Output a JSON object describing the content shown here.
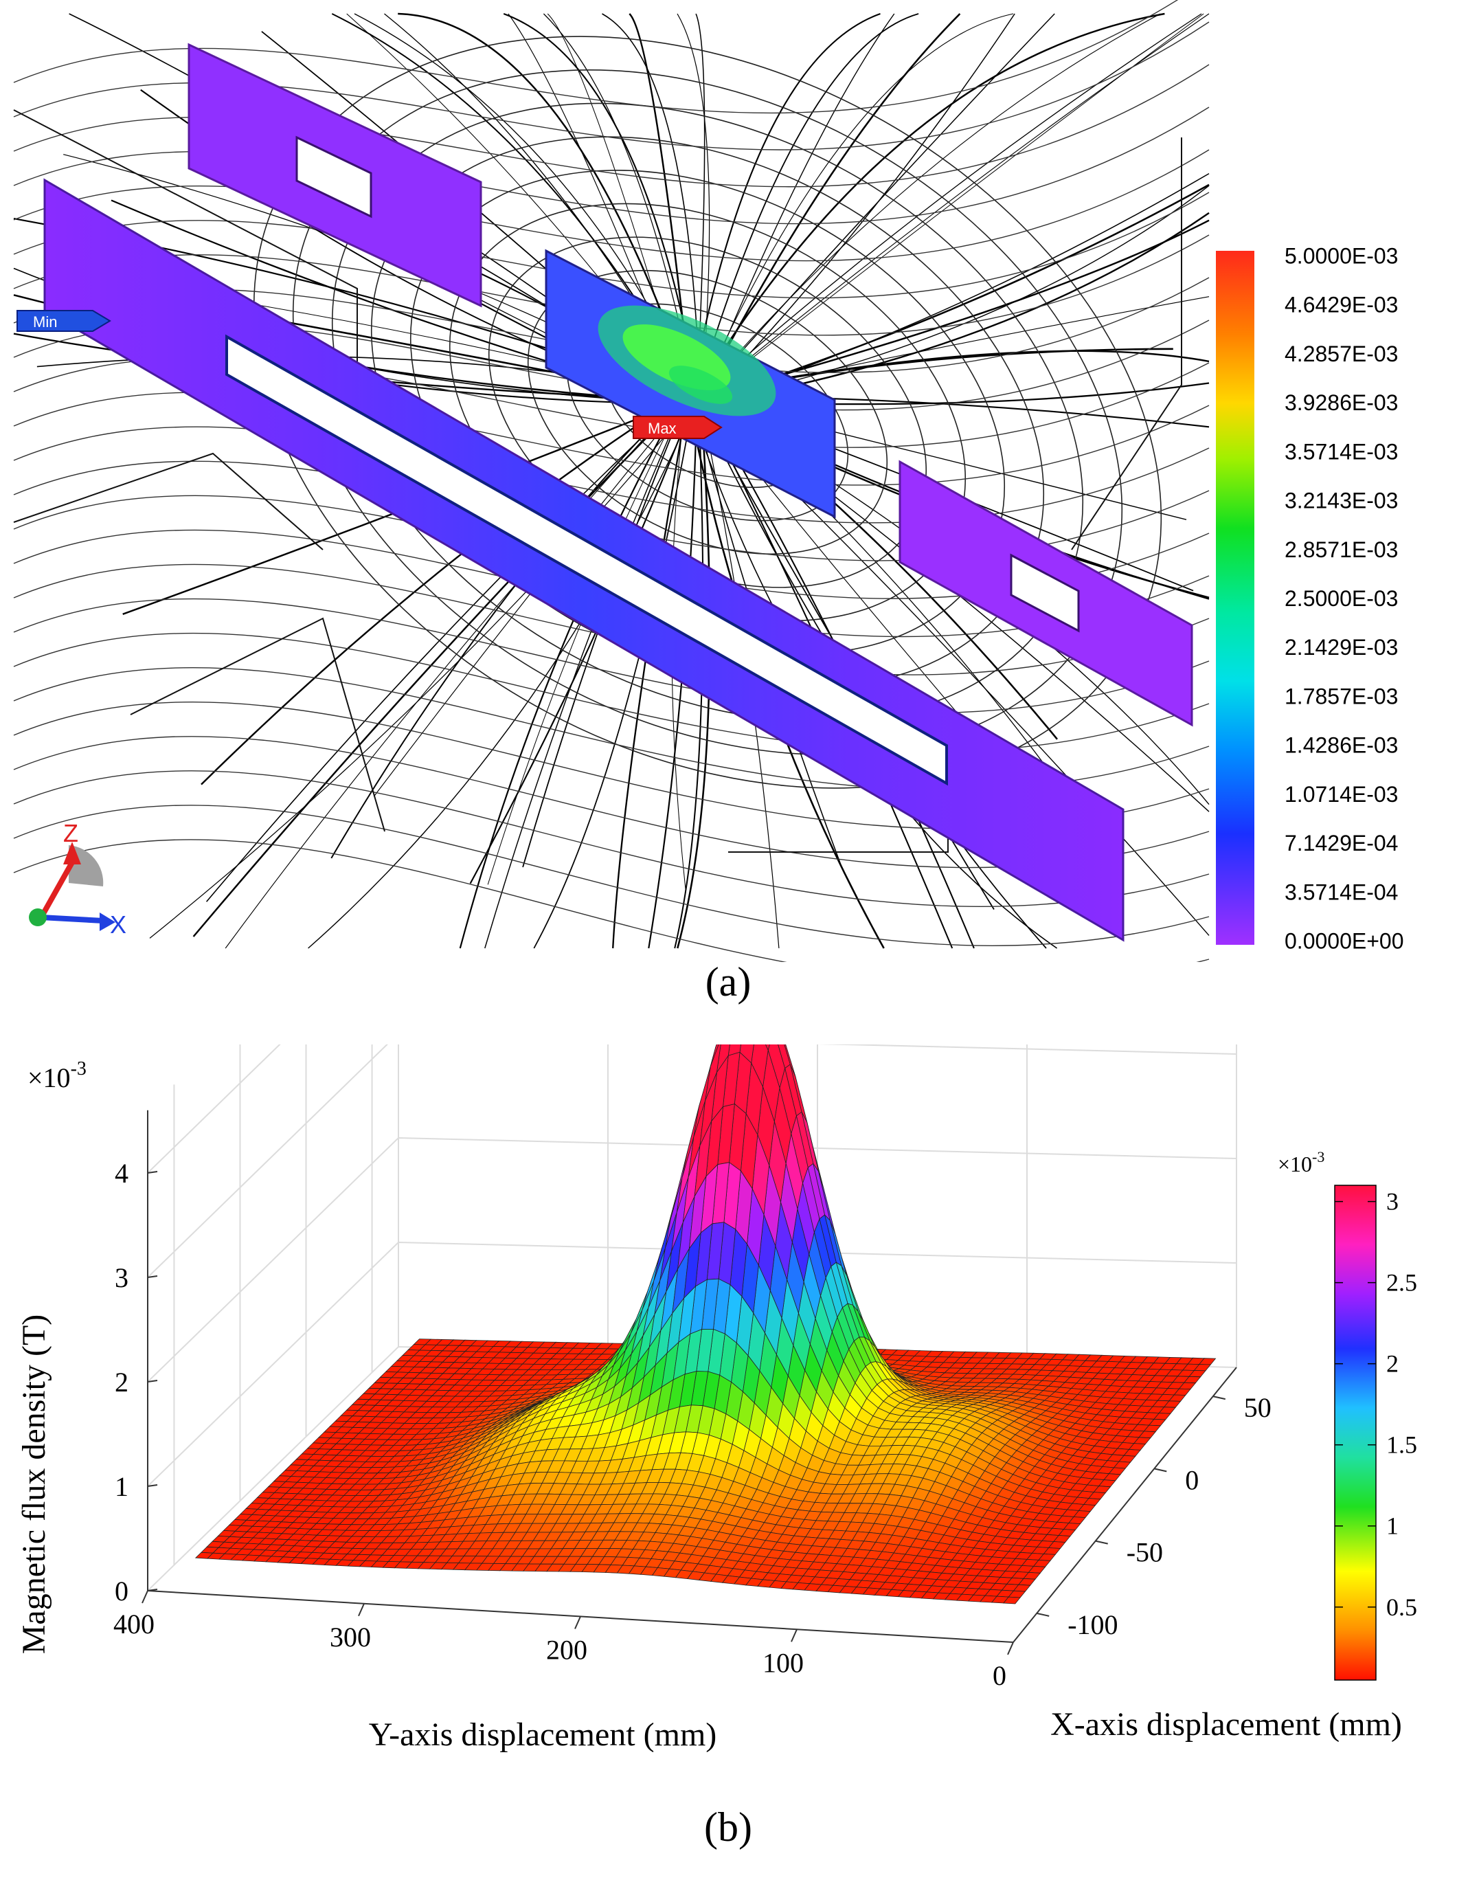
{
  "panel_a": {
    "caption": "(a)",
    "min_marker": "Min",
    "max_marker": "Max",
    "axis_triad": {
      "z": "Z",
      "x": "X"
    },
    "colorbar_labels": [
      "5.0000E-03",
      "4.6429E-03",
      "4.2857E-03",
      "3.9286E-03",
      "3.5714E-03",
      "3.2143E-03",
      "2.8571E-03",
      "2.5000E-03",
      "2.1429E-03",
      "1.7857E-03",
      "1.4286E-03",
      "1.0714E-03",
      "7.1429E-04",
      "3.5714E-04",
      "0.0000E+00"
    ],
    "colorbar_colors": [
      "#ff2a1a",
      "#ff6a00",
      "#ffa000",
      "#ffd800",
      "#c8f000",
      "#5ae800",
      "#10e020",
      "#00e060",
      "#00e8b0",
      "#00e0e0",
      "#00b0ff",
      "#0070ff",
      "#1a30ff",
      "#4a20ff",
      "#9a30ff"
    ]
  },
  "panel_b": {
    "caption": "(b)",
    "chart_data": {
      "type": "surface",
      "title": "",
      "xlabel": "X-axis displacement (mm)",
      "ylabel": "Y-axis displacement (mm)",
      "zlabel": "Magnetic flux density (T)",
      "z_multiplier": "×10",
      "z_multiplier_exp": "-3",
      "xticks": [
        "-100",
        "-50",
        "0",
        "50"
      ],
      "yticks": [
        "400",
        "300",
        "200",
        "100",
        "0"
      ],
      "zticks": [
        "0",
        "1",
        "2",
        "3",
        "4"
      ],
      "xlim": [
        -120,
        70
      ],
      "ylim": [
        0,
        400
      ],
      "zlim": [
        0,
        4
      ],
      "peak": {
        "x": 0,
        "y": 200,
        "z": 4.2
      },
      "colorbar": {
        "multiplier": "×10",
        "multiplier_exp": "-3",
        "ticks": [
          "3",
          "2.5",
          "2",
          "1.5",
          "1",
          "0.5"
        ],
        "range": [
          0.05,
          3.1
        ]
      },
      "grid": true
    }
  }
}
